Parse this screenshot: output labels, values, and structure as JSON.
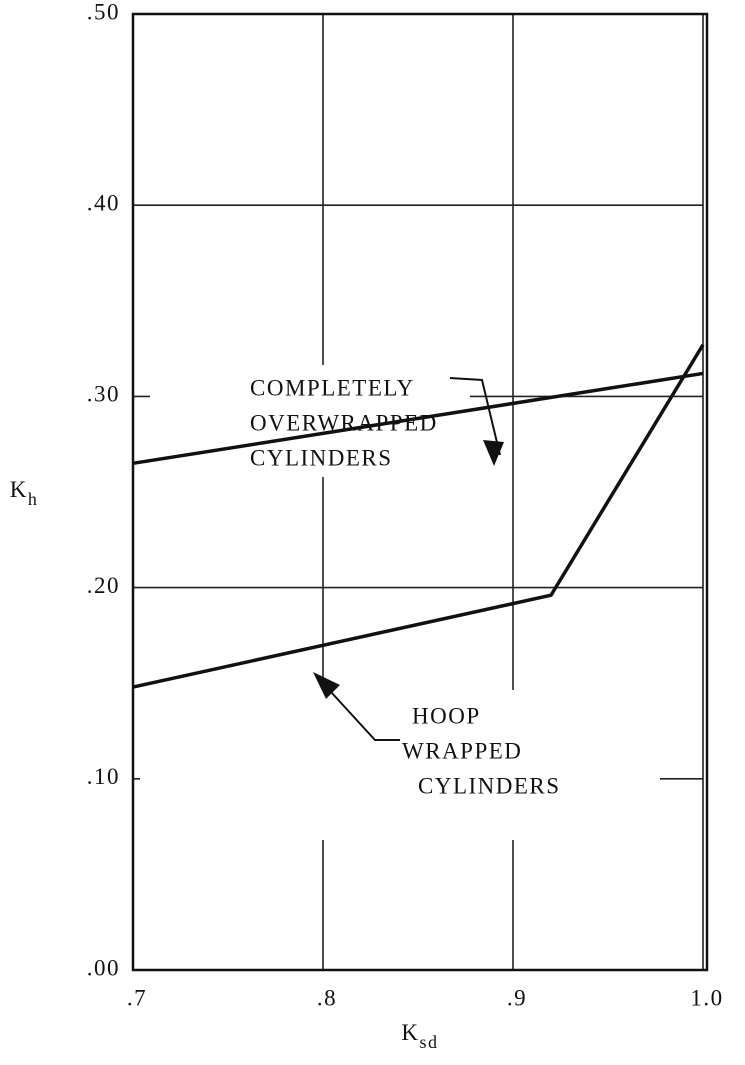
{
  "chart_data": {
    "type": "line",
    "xlabel": {
      "main": "K",
      "sub": "sd"
    },
    "ylabel": {
      "main": "K",
      "sub": "h"
    },
    "xlim": [
      0.7,
      1.0
    ],
    "ylim": [
      0.0,
      0.5
    ],
    "xticks": [
      {
        "value": 0.7,
        "label": ".7"
      },
      {
        "value": 0.8,
        "label": ".8"
      },
      {
        "value": 0.9,
        "label": ".9"
      },
      {
        "value": 1.0,
        "label": "1.0"
      }
    ],
    "yticks": [
      {
        "value": 0.0,
        "label": ".00"
      },
      {
        "value": 0.1,
        "label": ".10"
      },
      {
        "value": 0.2,
        "label": ".20"
      },
      {
        "value": 0.3,
        "label": ".30"
      },
      {
        "value": 0.4,
        "label": ".40"
      },
      {
        "value": 0.5,
        "label": ".50"
      }
    ],
    "grid": true,
    "series": [
      {
        "color": "#111111",
        "x": [
          0.7,
          1.0
        ],
        "values": [
          0.265,
          0.312
        ]
      },
      {
        "color": "#111111",
        "x": [
          0.7,
          0.92,
          1.0
        ],
        "values": [
          0.148,
          0.196,
          0.327
        ]
      }
    ],
    "annotations": [
      {
        "lines": [
          "COMPLETELY",
          "OVERWRAPPED",
          "CYLINDERS"
        ]
      },
      {
        "lines": [
          "HOOP",
          "WRAPPED",
          "CYLINDERS"
        ]
      }
    ]
  }
}
